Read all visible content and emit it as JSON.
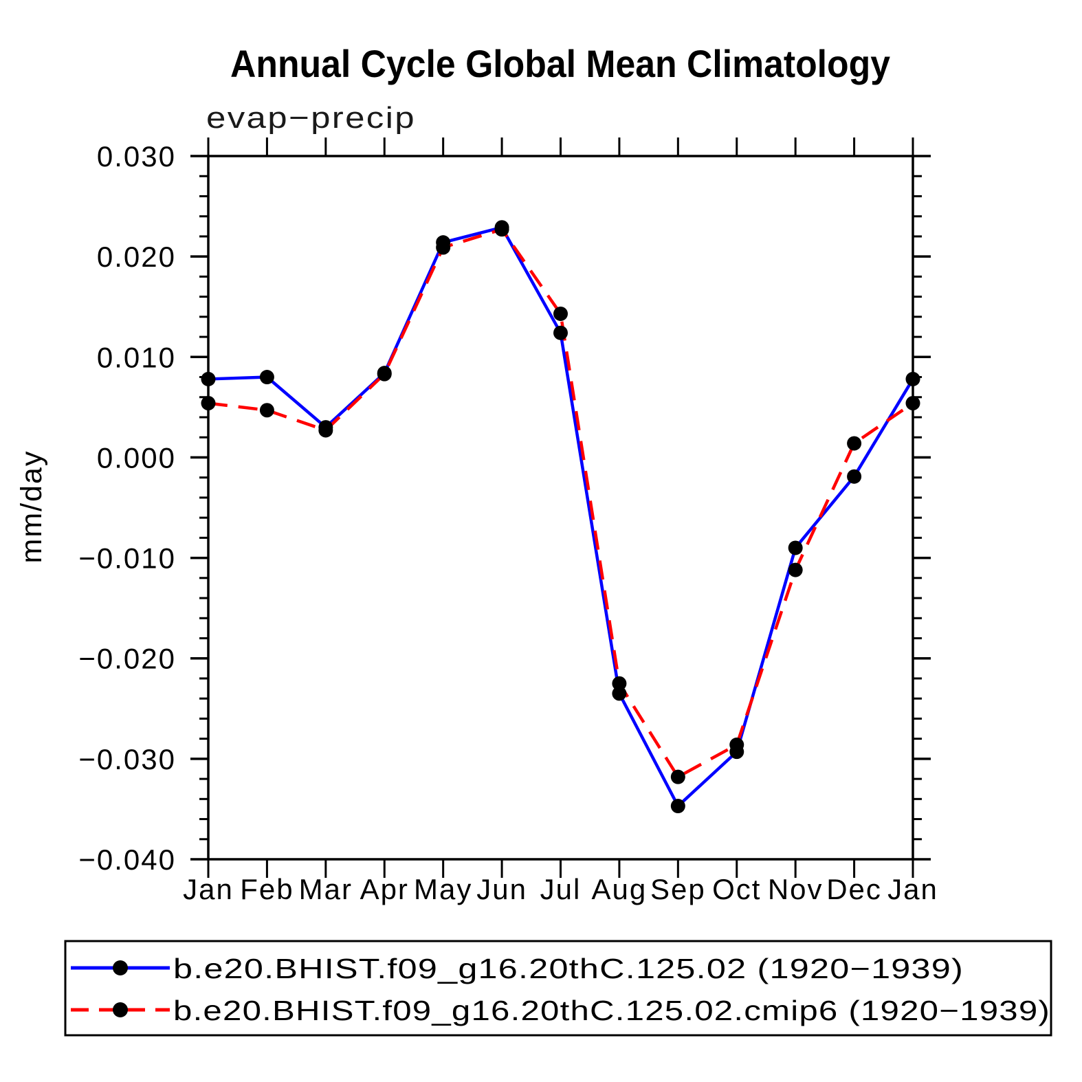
{
  "chart_data": {
    "type": "line",
    "title": "Annual Cycle Global Mean Climatology",
    "subtitle": "evap−precip",
    "ylabel": "mm/day",
    "categories": [
      "Jan",
      "Feb",
      "Mar",
      "Apr",
      "May",
      "Jun",
      "Jul",
      "Aug",
      "Sep",
      "Oct",
      "Nov",
      "Dec",
      "Jan"
    ],
    "ylim": [
      -0.04,
      0.03
    ],
    "ytick_step": 0.01,
    "yminor_step": 0.002,
    "ytick_labels": [
      "0.030",
      "0.020",
      "0.010",
      "0.000",
      "−0.010",
      "−0.020",
      "−0.030",
      "−0.040"
    ],
    "grid": false,
    "legend_position": "bottom",
    "marker": "circle",
    "marker_color": "#000000",
    "series": [
      {
        "name": "b.e20.BHIST.f09_g16.20thC.125.02 (1920−1939)",
        "color": "#0000ff",
        "style": "solid",
        "values": [
          0.0078,
          0.008,
          0.003,
          0.0084,
          0.0214,
          0.0229,
          0.0124,
          -0.0235,
          -0.0347,
          -0.0293,
          -0.009,
          -0.0019,
          0.0078
        ]
      },
      {
        "name": "b.e20.BHIST.f09_g16.20thC.125.02.cmip6 (1920−1939)",
        "color": "#ff0000",
        "style": "dashed",
        "values": [
          0.0054,
          0.0047,
          0.0027,
          0.0083,
          0.0209,
          0.0227,
          0.0143,
          -0.0225,
          -0.0318,
          -0.0286,
          -0.0112,
          0.0014,
          0.0054
        ]
      }
    ]
  }
}
